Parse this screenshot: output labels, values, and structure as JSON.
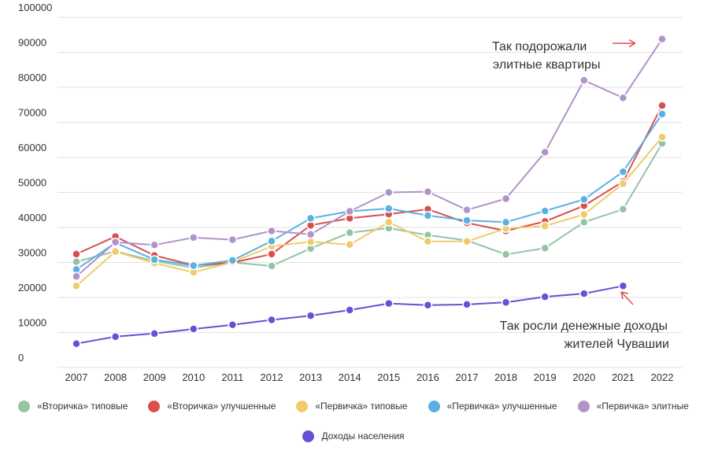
{
  "chart_data": {
    "type": "line",
    "title": "",
    "xlabel": "",
    "ylabel": "",
    "x": [
      "2007",
      "2008",
      "2009",
      "2010",
      "2011",
      "2012",
      "2013",
      "2014",
      "2015",
      "2016",
      "2017",
      "2018",
      "2019",
      "2020",
      "2021",
      "2022"
    ],
    "y_ticks": [
      "0",
      "10000",
      "20000",
      "30000",
      "40000",
      "50000",
      "60000",
      "70000",
      "80000",
      "90000",
      "100000"
    ],
    "ylim": [
      0,
      100000
    ],
    "grid": true,
    "legend_position": "bottom",
    "series": [
      {
        "name": "«Вторичка» типовые",
        "color": "#93c4a4",
        "values": [
          30200,
          33200,
          30400,
          28500,
          30000,
          29000,
          34000,
          38500,
          39800,
          37800,
          36300,
          32300,
          34100,
          41500,
          45200,
          64000
        ]
      },
      {
        "name": "«Вторичка» улучшенные",
        "color": "#d94f4f",
        "values": [
          32400,
          37400,
          32000,
          29200,
          29900,
          32400,
          40600,
          42600,
          43800,
          45200,
          41300,
          39000,
          41700,
          46200,
          53100,
          74800
        ]
      },
      {
        "name": "«Первичка» типовые",
        "color": "#efcb6b",
        "values": [
          23300,
          33100,
          29800,
          27200,
          30100,
          34600,
          35900,
          35100,
          41500,
          36000,
          36000,
          39700,
          40400,
          43700,
          52500,
          65800
        ]
      },
      {
        "name": "«Первичка» улучшенные",
        "color": "#5ab0e2",
        "values": [
          28000,
          35600,
          30800,
          29100,
          30600,
          36100,
          42600,
          44600,
          45400,
          43400,
          42000,
          41500,
          44700,
          48000,
          55900,
          72400
        ]
      },
      {
        "name": "«Первичка» элитные",
        "color": "#b193c9",
        "values": [
          26000,
          35800,
          35000,
          37100,
          36500,
          39000,
          38000,
          44600,
          50000,
          50200,
          45000,
          48200,
          61500,
          82000,
          77000,
          93800
        ]
      },
      {
        "name": "Доходы населения",
        "color": "#6a4fd6",
        "values": [
          6800,
          8800,
          9700,
          11000,
          12200,
          13600,
          14800,
          16400,
          18300,
          17800,
          18000,
          18600,
          20200,
          21100,
          23300,
          null
        ]
      }
    ],
    "annotations": [
      {
        "lines": [
          "Так подорожали",
          "элитные квартиры"
        ],
        "color": "#333333",
        "arrow_color": "#e05050",
        "points_to": {
          "x": "2022",
          "series": "«Первичка» элитные"
        }
      },
      {
        "lines": [
          "Так росли денежные доходы",
          "жителей Чувашии"
        ],
        "color": "#333333",
        "arrow_color": "#e05050",
        "points_to": {
          "x": "2021",
          "series": "Доходы населения"
        }
      }
    ],
    "colors": {
      "grid": "#e0e0e0",
      "axis_text": "#333333",
      "arrow": "#e05050"
    }
  }
}
